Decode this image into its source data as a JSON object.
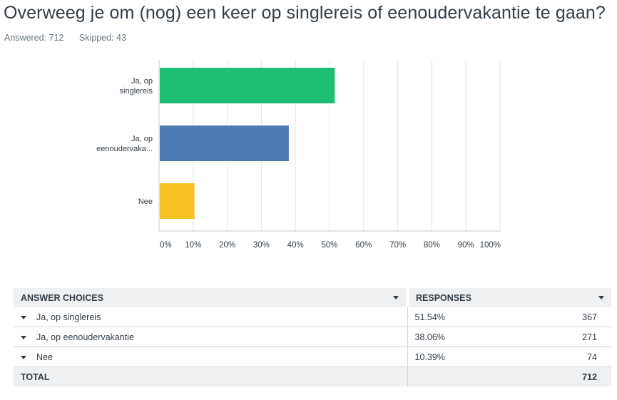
{
  "question": {
    "title": "Overweeg je om (nog) een keer op singlereis of eenoudervakantie te gaan?",
    "answered": "Answered: 712",
    "skipped": "Skipped: 43"
  },
  "chart_data": {
    "type": "bar",
    "orientation": "horizontal",
    "title": "",
    "xlabel": "",
    "ylabel": "",
    "categories": [
      [
        "Ja, op",
        "singlereis"
      ],
      [
        "Ja, op",
        "eenoudervaka..."
      ],
      [
        "Nee"
      ]
    ],
    "values": [
      51.54,
      38.06,
      10.39
    ],
    "colors": [
      "#1ebf75",
      "#507cb6",
      "#f8c124"
    ],
    "xlim": [
      0,
      100
    ],
    "xticks": [
      "0%",
      "10%",
      "20%",
      "30%",
      "40%",
      "50%",
      "60%",
      "70%",
      "80%",
      "90%",
      "100%"
    ],
    "grid": true,
    "legend": "none"
  },
  "table": {
    "header_choice": "ANSWER CHOICES",
    "header_responses": "RESPONSES",
    "rows": [
      {
        "label": "Ja, op singlereis",
        "percent": "51.54%",
        "count": "367"
      },
      {
        "label": "Ja, op eenoudervakantie",
        "percent": "38.06%",
        "count": "271"
      },
      {
        "label": "Nee",
        "percent": "10.39%",
        "count": "74"
      }
    ],
    "total_label": "TOTAL",
    "total_count": "712"
  }
}
